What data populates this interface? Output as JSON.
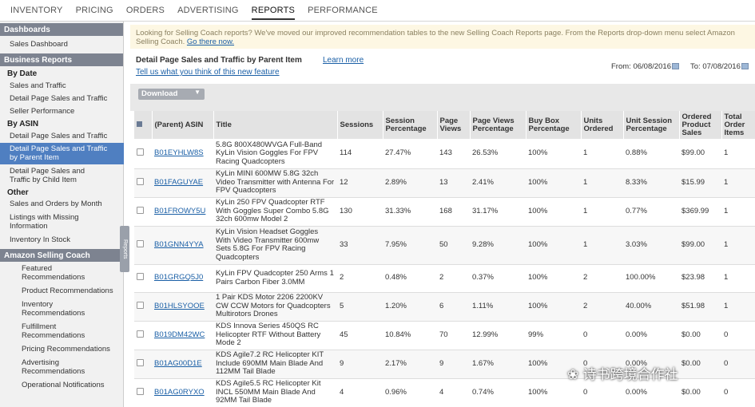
{
  "nav": [
    "INVENTORY",
    "PRICING",
    "ORDERS",
    "ADVERTISING",
    "REPORTS",
    "PERFORMANCE"
  ],
  "nav_active": "REPORTS",
  "sidebar": {
    "dashboards_header": "Dashboards",
    "sales_dashboard": "Sales Dashboard",
    "business_header": "Business Reports",
    "by_date": "By Date",
    "date_items": [
      "Sales and Traffic",
      "Detail Page Sales and Traffic",
      "Seller Performance"
    ],
    "by_asin": "By ASIN",
    "asin_items": [
      "Detail Page Sales and Traffic",
      "Detail Page Sales and Traffic by Parent Item",
      "Detail Page Sales and Traffic by Child Item"
    ],
    "other": "Other",
    "other_items": [
      "Sales and Orders by Month",
      "Listings with Missing Information",
      "Inventory In Stock"
    ],
    "coach_header": "Amazon Selling Coach",
    "coach_items": [
      "Featured Recommendations",
      "Product Recommendations",
      "Inventory Recommendations",
      "Fulfillment Recommendations",
      "Pricing Recommendations",
      "Advertising Recommendations",
      "Operational Notifications"
    ],
    "handle_label": "Reports"
  },
  "banner": {
    "text": "Looking for Selling Coach reports? We've moved our improved recommendation tables to the new Selling Coach Reports page. From the Reports drop-down menu select Amazon Selling Coach.",
    "link": "Go there now."
  },
  "report": {
    "title": "Detail Page Sales and Traffic by Parent Item",
    "learn_more": "Learn more",
    "feedback": "Tell us what you think of this new feature",
    "from_label": "From:",
    "from_date": "06/08/2016",
    "to_label": "To:",
    "to_date": "07/08/2016",
    "download": "Download"
  },
  "table": {
    "headers": [
      "(Parent) ASIN",
      "Title",
      "Sessions",
      "Session Percentage",
      "Page Views",
      "Page Views Percentage",
      "Buy Box Percentage",
      "Units Ordered",
      "Unit Session Percentage",
      "Ordered Product Sales",
      "Total Order Items"
    ],
    "rows": [
      [
        "B01EYHLW8S",
        "5.8G 800X480WVGA Full-Band KyLin Vision Goggles For FPV Racing Quadcopters",
        "114",
        "27.47%",
        "143",
        "26.53%",
        "100%",
        "1",
        "0.88%",
        "$99.00",
        "1"
      ],
      [
        "B01FAGUYAE",
        "KyLin MINI 600MW 5.8G 32ch Video Transmitter with Antenna For FPV Quadcopters",
        "12",
        "2.89%",
        "13",
        "2.41%",
        "100%",
        "1",
        "8.33%",
        "$15.99",
        "1"
      ],
      [
        "B01FROWY5U",
        "KyLin 250 FPV Quadcopter RTF With Goggles Super Combo 5.8G 32ch 600mw Model 2",
        "130",
        "31.33%",
        "168",
        "31.17%",
        "100%",
        "1",
        "0.77%",
        "$369.99",
        "1"
      ],
      [
        "B01GNN4YYA",
        "KyLin Vision Headset Goggles With Video Transmitter 600mw Sets 5.8G For FPV Racing Quadcopters",
        "33",
        "7.95%",
        "50",
        "9.28%",
        "100%",
        "1",
        "3.03%",
        "$99.00",
        "1"
      ],
      [
        "B01GRGQ5J0",
        "KyLin FPV Quadcopter 250 Arms 1 Pairs Carbon Fiber 3.0MM",
        "2",
        "0.48%",
        "2",
        "0.37%",
        "100%",
        "2",
        "100.00%",
        "$23.98",
        "1"
      ],
      [
        "B01HLSYOOE",
        "1 Pair KDS Motor 2206 2200KV CW CCW Motors for Quadcopters Multirotors Drones",
        "5",
        "1.20%",
        "6",
        "1.11%",
        "100%",
        "2",
        "40.00%",
        "$51.98",
        "1"
      ],
      [
        "B019DM42WC",
        "KDS Innova Series 450QS RC Helicopter RTF Without Battery Mode 2",
        "45",
        "10.84%",
        "70",
        "12.99%",
        "99%",
        "0",
        "0.00%",
        "$0.00",
        "0"
      ],
      [
        "B01AG00D1E",
        "KDS Agile7.2 RC Helicopter KIT Include 690MM Main Blade And 112MM Tail Blade",
        "9",
        "2.17%",
        "9",
        "1.67%",
        "100%",
        "0",
        "0.00%",
        "$0.00",
        "0"
      ],
      [
        "B01AG0RYXO",
        "KDS Agile5.5 RC Helicopter Kit INCL 550MM Main Blade And 92MM Tail Blade",
        "4",
        "0.96%",
        "4",
        "0.74%",
        "100%",
        "0",
        "0.00%",
        "$0.00",
        "0"
      ]
    ]
  },
  "watermark": "诗书跨境合作社"
}
